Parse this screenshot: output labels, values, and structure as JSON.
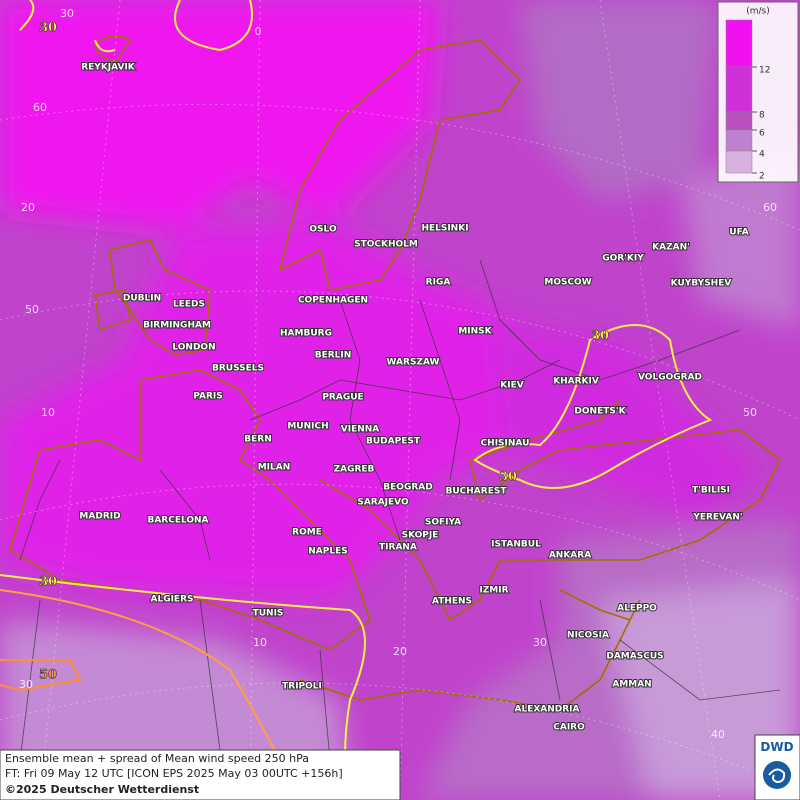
{
  "cities": [
    "REYKJAVIK",
    "OSLO",
    "STOCKHOLM",
    "HELSINKI",
    "DUBLIN",
    "LEEDS",
    "COPENHAGEN",
    "RIGA",
    "MOSCOW",
    "GOR'KIY",
    "KAZAN'",
    "UFA",
    "KUYBYSHEV",
    "BIRMINGHAM",
    "HAMBURG",
    "MINSK",
    "LONDON",
    "BERLIN",
    "WARSZAW",
    "BRUSSELS",
    "KIEV",
    "KHARKIV",
    "VOLGOGRAD",
    "PARIS",
    "PRAGUE",
    "DONETS'K",
    "MUNICH",
    "VIENNA",
    "BERN",
    "BUDAPEST",
    "CHISINAU",
    "MILAN",
    "ZAGREB",
    "BEOGRAD",
    "BUCHAREST",
    "T'BILISI",
    "SARAJEVO",
    "MADRID",
    "BARCELONA",
    "YEREVAN'",
    "SOFIYA",
    "ROME",
    "SKOPJE",
    "TIRANA",
    "ISTANBUL",
    "NAPLES",
    "ANKARA",
    "IZMIR",
    "ALGIERS",
    "ATHENS",
    "ALEPPO",
    "TUNIS",
    "NICOSIA",
    "DAMASCUS",
    "TRIPOLI",
    "AMMAN",
    "ALEXANDRIA",
    "CAIRO"
  ],
  "grid_labels": [
    "30",
    "0",
    "60",
    "20",
    "50",
    "10",
    "30",
    "10",
    "20",
    "30",
    "40",
    "50",
    "60"
  ],
  "contour_labels": [
    "30",
    "30",
    "30",
    "30",
    "50"
  ],
  "legend": {
    "unit": "(m/s)",
    "ticks": [
      12,
      8,
      6,
      4,
      2
    ],
    "colors": [
      "#f010f0",
      "#d030d8",
      "#b850c0",
      "#c080d0",
      "#d8b0e0"
    ]
  },
  "footer": [
    "Ensemble mean + spread of Mean wind speed 250 hPa",
    "FT: Fri 09 May 12 UTC [ICON EPS 2025 May 03 00UTC +156h]",
    "©2025 Deutscher Wetterdienst"
  ],
  "logo": "DWD"
}
